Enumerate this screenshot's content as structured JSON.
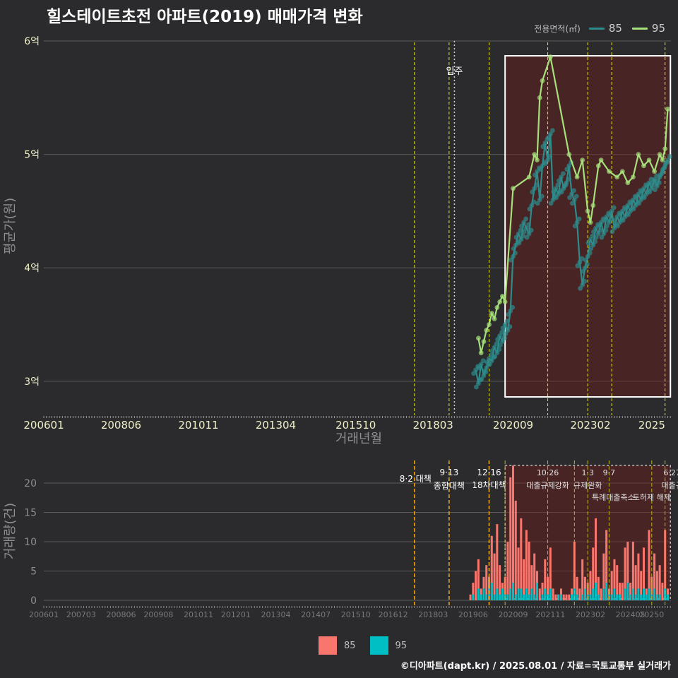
{
  "title": "힐스테이트초전 아파트(2019) 매매가격 변화",
  "caption": "©디아파트(dapt.kr) / 2025.08.01 / 자료=국토교통부 실거래가",
  "legend": {
    "title": "전용면적(㎡)",
    "items": [
      {
        "name": "85",
        "line_color": "#2e8b8b",
        "bar_color": "#f8766d"
      },
      {
        "name": "95",
        "line_color": "#a6e07a",
        "bar_color": "#00bfc4"
      }
    ]
  },
  "chart_data": [
    {
      "type": "line",
      "ylabel": "평균가(원)",
      "xlabel": "거래년월",
      "x_ticks": [
        "200601",
        "200806",
        "201011",
        "201304",
        "201510",
        "201803",
        "202009",
        "202302",
        "2025"
      ],
      "y_ticks": [
        "3억",
        "4억",
        "5억",
        "6억"
      ],
      "ylim": [
        2.7,
        6.05
      ],
      "y_unit": "억",
      "occupancy": {
        "date": "2018-11",
        "label": "입주"
      },
      "policy_lines": [
        "2017-08",
        "2018-09",
        "2019-12",
        "2021-10",
        "2023-01",
        "2023-10",
        "2025-06"
      ],
      "highlight": {
        "from": "2020-06",
        "to": "2025-08"
      },
      "series": [
        {
          "name": "85",
          "points": [
            [
              "2019-07",
              3.1
            ],
            [
              "2019-08",
              2.98
            ],
            [
              "2019-09",
              3.15
            ],
            [
              "2019-10",
              3.05
            ],
            [
              "2019-11",
              3.12
            ],
            [
              "2019-12",
              3.2
            ],
            [
              "2020-01",
              3.18
            ],
            [
              "2020-02",
              3.3
            ],
            [
              "2020-03",
              3.25
            ],
            [
              "2020-04",
              3.4
            ],
            [
              "2020-05",
              3.35
            ],
            [
              "2020-06",
              3.5
            ],
            [
              "2020-07",
              3.45
            ],
            [
              "2020-08",
              3.62
            ],
            [
              "2020-09",
              4.1
            ],
            [
              "2020-10",
              4.2
            ],
            [
              "2020-11",
              4.3
            ],
            [
              "2020-12",
              4.25
            ],
            [
              "2021-01",
              4.4
            ],
            [
              "2021-02",
              4.35
            ],
            [
              "2021-03",
              4.3
            ],
            [
              "2021-04",
              4.55
            ],
            [
              "2021-05",
              4.7
            ],
            [
              "2021-06",
              4.85
            ],
            [
              "2021-07",
              4.6
            ],
            [
              "2021-08",
              4.9
            ],
            [
              "2021-09",
              5.1
            ],
            [
              "2021-10",
              4.95
            ],
            [
              "2021-11",
              5.18
            ],
            [
              "2021-12",
              4.6
            ],
            [
              "2022-01",
              4.7
            ],
            [
              "2022-02",
              4.65
            ],
            [
              "2022-03",
              4.8
            ],
            [
              "2022-04",
              4.7
            ],
            [
              "2022-05",
              4.75
            ],
            [
              "2022-06",
              4.9
            ],
            [
              "2022-07",
              4.65
            ],
            [
              "2022-08",
              4.6
            ],
            [
              "2022-09",
              4.4
            ],
            [
              "2022-10",
              4.05
            ],
            [
              "2022-11",
              3.85
            ],
            [
              "2022-12",
              4.0
            ],
            [
              "2023-01",
              4.1
            ],
            [
              "2023-02",
              4.25
            ],
            [
              "2023-03",
              4.2
            ],
            [
              "2023-04",
              4.35
            ],
            [
              "2023-05",
              4.3
            ],
            [
              "2023-06",
              4.4
            ],
            [
              "2023-07",
              4.3
            ],
            [
              "2023-08",
              4.45
            ],
            [
              "2023-09",
              4.4
            ],
            [
              "2023-10",
              4.5
            ],
            [
              "2023-11",
              4.35
            ],
            [
              "2023-12",
              4.45
            ],
            [
              "2024-01",
              4.4
            ],
            [
              "2024-02",
              4.5
            ],
            [
              "2024-03",
              4.45
            ],
            [
              "2024-04",
              4.55
            ],
            [
              "2024-05",
              4.5
            ],
            [
              "2024-06",
              4.6
            ],
            [
              "2024-07",
              4.55
            ],
            [
              "2024-08",
              4.65
            ],
            [
              "2024-09",
              4.6
            ],
            [
              "2024-10",
              4.7
            ],
            [
              "2024-11",
              4.65
            ],
            [
              "2024-12",
              4.75
            ],
            [
              "2025-01",
              4.7
            ],
            [
              "2025-02",
              4.78
            ],
            [
              "2025-03",
              4.72
            ],
            [
              "2025-04",
              4.8
            ],
            [
              "2025-05",
              4.85
            ],
            [
              "2025-06",
              4.9
            ],
            [
              "2025-07",
              4.95
            ]
          ]
        },
        {
          "name": "95",
          "points": [
            [
              "2019-08",
              3.38
            ],
            [
              "2019-09",
              3.25
            ],
            [
              "2019-10",
              3.35
            ],
            [
              "2019-11",
              3.45
            ],
            [
              "2019-12",
              3.5
            ],
            [
              "2020-01",
              3.6
            ],
            [
              "2020-02",
              3.55
            ],
            [
              "2020-03",
              3.65
            ],
            [
              "2020-04",
              3.7
            ],
            [
              "2020-05",
              3.75
            ],
            [
              "2020-06",
              3.7
            ],
            [
              "2020-09",
              4.7
            ],
            [
              "2021-03",
              4.8
            ],
            [
              "2021-05",
              5.0
            ],
            [
              "2021-06",
              4.95
            ],
            [
              "2021-07",
              5.5
            ],
            [
              "2021-08",
              5.65
            ],
            [
              "2021-11",
              5.86
            ],
            [
              "2022-06",
              5.0
            ],
            [
              "2022-09",
              4.8
            ],
            [
              "2022-11",
              4.95
            ],
            [
              "2023-01",
              4.5
            ],
            [
              "2023-02",
              4.4
            ],
            [
              "2023-03",
              4.55
            ],
            [
              "2023-05",
              4.9
            ],
            [
              "2023-06",
              4.95
            ],
            [
              "2023-09",
              4.85
            ],
            [
              "2023-12",
              4.8
            ],
            [
              "2024-02",
              4.85
            ],
            [
              "2024-04",
              4.75
            ],
            [
              "2024-06",
              4.8
            ],
            [
              "2024-08",
              5.0
            ],
            [
              "2024-10",
              4.9
            ],
            [
              "2024-12",
              4.95
            ],
            [
              "2025-02",
              4.85
            ],
            [
              "2025-04",
              5.0
            ],
            [
              "2025-05",
              4.95
            ],
            [
              "2025-06",
              5.05
            ],
            [
              "2025-07",
              5.4
            ]
          ]
        }
      ]
    },
    {
      "type": "bar",
      "ylabel": "거래량(건)",
      "x_ticks": [
        "200601",
        "200703",
        "200806",
        "200908",
        "201011",
        "201201",
        "201304",
        "201407",
        "201510",
        "201612",
        "201803",
        "201906",
        "202009",
        "202111",
        "202302",
        "202405",
        "20250"
      ],
      "y_ticks": [
        0,
        5,
        10,
        15,
        20
      ],
      "ylim": [
        0,
        23.5
      ],
      "stacked": true,
      "highlight": {
        "from": "2020-06",
        "to": "2025-08"
      },
      "policy_lines": [
        {
          "date": "2017-08",
          "label": "8·2 대책",
          "label2": ""
        },
        {
          "date": "2018-09",
          "label": "9·13",
          "label2": "종합대책"
        },
        {
          "date": "2019-12",
          "label": "12·16",
          "label2": "18차대책"
        },
        {
          "date": "2020-06",
          "label": "",
          "label2": ""
        },
        {
          "date": "2021-10",
          "label": "10·26",
          "label2": "대출규제강화"
        },
        {
          "date": "2022-08",
          "label": "",
          "label2": ""
        },
        {
          "date": "2023-01",
          "label": "1·3",
          "label2": "규제완화"
        },
        {
          "date": "2023-09",
          "label": "9·7",
          "label2": "특례대출축소"
        },
        {
          "date": "2025-01",
          "label": "",
          "label2": "토허제 해제"
        },
        {
          "date": "2025-06",
          "label": "6·27",
          "label2": "대출규"
        }
      ],
      "months": [
        "2019-05",
        "2019-06",
        "2019-07",
        "2019-08",
        "2019-09",
        "2019-10",
        "2019-11",
        "2019-12",
        "2020-01",
        "2020-02",
        "2020-03",
        "2020-04",
        "2020-05",
        "2020-06",
        "2020-07",
        "2020-08",
        "2020-09",
        "2020-10",
        "2020-11",
        "2020-12",
        "2021-01",
        "2021-02",
        "2021-03",
        "2021-04",
        "2021-05",
        "2021-06",
        "2021-07",
        "2021-08",
        "2021-09",
        "2021-10",
        "2021-11",
        "2021-12",
        "2022-01",
        "2022-02",
        "2022-03",
        "2022-04",
        "2022-05",
        "2022-06",
        "2022-07",
        "2022-08",
        "2022-09",
        "2022-10",
        "2022-11",
        "2022-12",
        "2023-01",
        "2023-02",
        "2023-03",
        "2023-04",
        "2023-05",
        "2023-06",
        "2023-07",
        "2023-08",
        "2023-09",
        "2023-10",
        "2023-11",
        "2023-12",
        "2024-01",
        "2024-02",
        "2024-03",
        "2024-04",
        "2024-05",
        "2024-06",
        "2024-07",
        "2024-08",
        "2024-09",
        "2024-10",
        "2024-11",
        "2024-12",
        "2025-01",
        "2025-02",
        "2025-03",
        "2025-04",
        "2025-05",
        "2025-06",
        "2025-07"
      ],
      "series": [
        {
          "name": "85",
          "values": [
            1,
            3,
            5,
            7,
            2,
            4,
            6,
            4,
            11,
            8,
            13,
            6,
            3,
            4,
            10,
            21,
            23,
            17,
            9,
            14,
            7,
            12,
            10,
            6,
            8,
            5,
            2,
            3,
            7,
            4,
            9,
            2,
            1,
            1,
            2,
            1,
            1,
            1,
            2,
            10,
            4,
            2,
            7,
            4,
            3,
            5,
            9,
            14,
            4,
            2,
            8,
            12,
            2,
            5,
            7,
            6,
            3,
            3,
            9,
            10,
            3,
            10,
            6,
            8,
            5,
            9,
            2,
            12,
            4,
            8,
            5,
            6,
            3,
            12,
            2
          ]
        },
        {
          "name": "95",
          "values": [
            0,
            1,
            0,
            2,
            1,
            2,
            1,
            2,
            3,
            1,
            2,
            1,
            2,
            1,
            1,
            2,
            3,
            1,
            2,
            2,
            1,
            2,
            1,
            2,
            1,
            3,
            0,
            1,
            2,
            1,
            2,
            0,
            0,
            1,
            1,
            0,
            0,
            0,
            1,
            2,
            1,
            0,
            1,
            2,
            1,
            1,
            2,
            3,
            1,
            0,
            2,
            3,
            1,
            1,
            2,
            1,
            1,
            0,
            2,
            3,
            1,
            2,
            1,
            2,
            1,
            2,
            1,
            2,
            1,
            2,
            1,
            1,
            0,
            2,
            1
          ]
        }
      ]
    }
  ]
}
